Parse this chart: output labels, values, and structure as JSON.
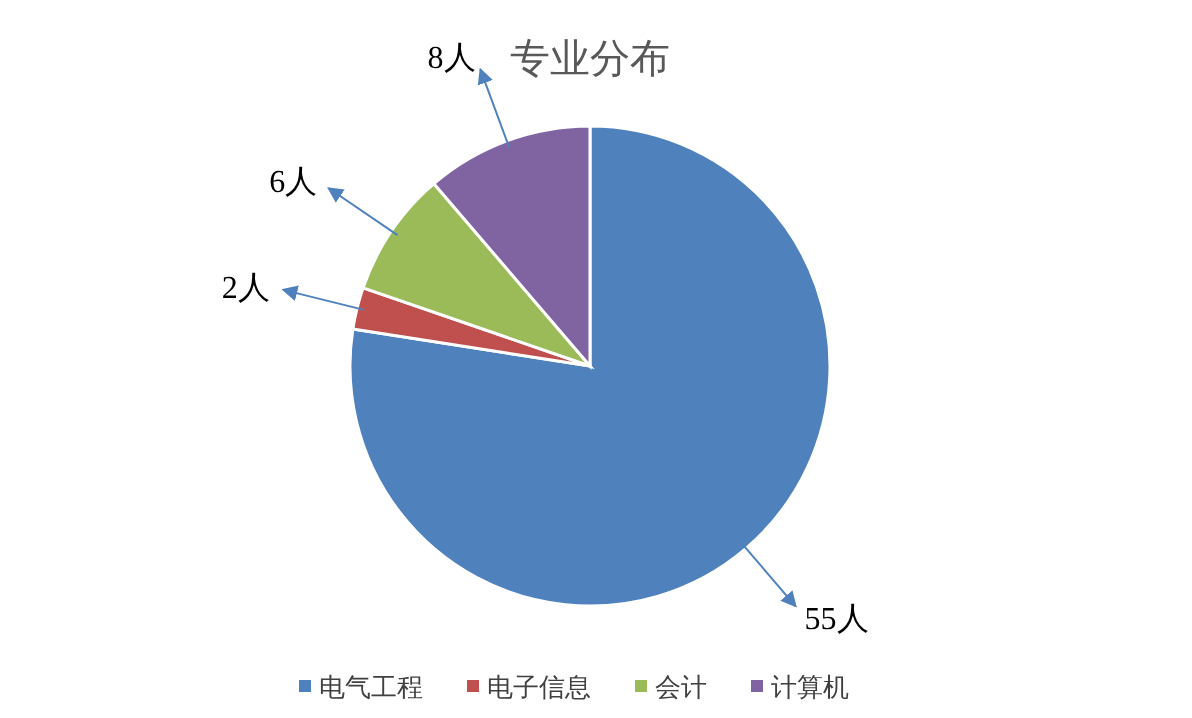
{
  "chart_data": {
    "type": "pie",
    "title": "专业分布",
    "categories": [
      "电气工程",
      "电子信息",
      "会计",
      "计算机"
    ],
    "values": [
      55,
      2,
      6,
      8
    ],
    "colors": [
      "#4f81bd",
      "#c0504d",
      "#9bbb59",
      "#8064a2"
    ],
    "value_labels": [
      "55人",
      "2人",
      "6人",
      "8人"
    ],
    "legend": "bottom"
  }
}
